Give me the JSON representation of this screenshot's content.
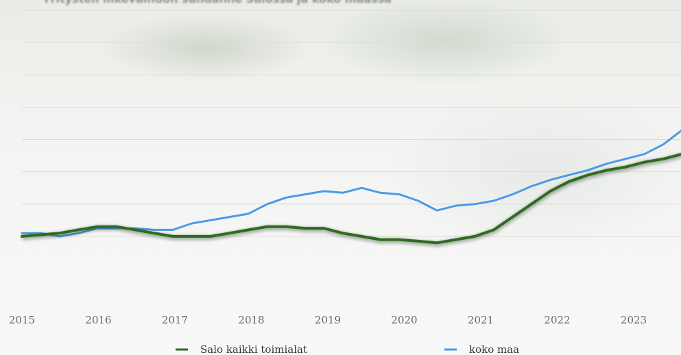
{
  "title": "Yritysten liikevaihdon suhdanne Salossa ja koko maassa",
  "colors": {
    "salo": "#2e6b1f",
    "koko_maa": "#4a9be8",
    "grid": "#d9dcd7"
  },
  "chart_data": {
    "type": "line",
    "title": "Yritysten liikevaihdon suhdanne Salossa ja koko maassa",
    "xlabel": "",
    "ylabel": "",
    "x_ticks": [
      "2015",
      "2016",
      "2017",
      "2018",
      "2019",
      "2020",
      "2021",
      "2022",
      "2023"
    ],
    "xlim": [
      2015,
      2023.75
    ],
    "ylim": [
      90,
      170
    ],
    "grid": true,
    "legend": "bottom",
    "series": [
      {
        "name": "Salo kaikki toimialat",
        "color": "#2e6b1f",
        "x": [
          2015.0,
          2015.25,
          2015.5,
          2015.75,
          2016.0,
          2016.25,
          2016.5,
          2016.75,
          2017.0,
          2017.25,
          2017.5,
          2017.75,
          2018.0,
          2018.25,
          2018.5,
          2018.75,
          2019.0,
          2019.25,
          2019.5,
          2019.75,
          2020.0,
          2020.25,
          2020.5,
          2020.75,
          2021.0,
          2021.25,
          2021.5,
          2021.75,
          2022.0,
          2022.25,
          2022.5,
          2022.75,
          2023.0,
          2023.25,
          2023.5,
          2023.75
        ],
        "values": [
          100.0,
          100.5,
          101.0,
          102.0,
          103.0,
          103.0,
          102.0,
          101.0,
          100.0,
          100.0,
          100.0,
          101.0,
          102.0,
          103.0,
          103.0,
          102.5,
          102.5,
          101.0,
          100.0,
          99.0,
          99.0,
          98.5,
          98.0,
          99.0,
          100.0,
          102.0,
          106.0,
          110.0,
          114.0,
          117.0,
          119.0,
          120.5,
          121.5,
          123.0,
          124.0,
          125.5
        ]
      },
      {
        "name": "koko maa",
        "color": "#4a9be8",
        "x": [
          2015.0,
          2015.25,
          2015.5,
          2015.75,
          2016.0,
          2016.25,
          2016.5,
          2016.75,
          2017.0,
          2017.25,
          2017.5,
          2017.75,
          2018.0,
          2018.25,
          2018.5,
          2018.75,
          2019.0,
          2019.25,
          2019.5,
          2019.75,
          2020.0,
          2020.25,
          2020.5,
          2020.75,
          2021.0,
          2021.25,
          2021.5,
          2021.75,
          2022.0,
          2022.25,
          2022.5,
          2022.75,
          2023.0,
          2023.25,
          2023.5,
          2023.75
        ],
        "values": [
          101.0,
          101.0,
          100.0,
          101.0,
          102.5,
          102.5,
          102.5,
          102.0,
          102.0,
          104.0,
          105.0,
          106.0,
          107.0,
          110.0,
          112.0,
          113.0,
          114.0,
          113.5,
          115.0,
          113.5,
          113.0,
          111.0,
          108.0,
          109.5,
          110.0,
          111.0,
          113.0,
          115.5,
          117.5,
          119.0,
          120.5,
          122.5,
          124.0,
          125.5,
          128.5,
          133.0
        ]
      }
    ]
  }
}
